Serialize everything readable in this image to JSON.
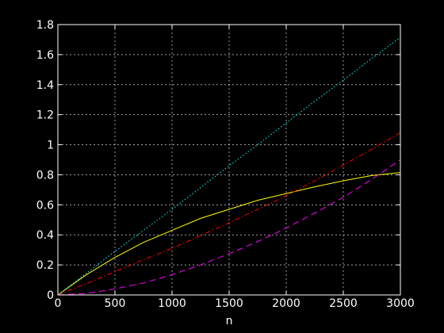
{
  "chart_data": {
    "type": "line",
    "title": "",
    "xlabel": "n",
    "ylabel": "",
    "xlim": [
      0,
      3000
    ],
    "ylim": [
      0,
      1.8
    ],
    "grid": true,
    "background": "#000000",
    "axis_color": "#ffffff",
    "grid_color": "#ffffff",
    "xticks": [
      0,
      500,
      1000,
      1500,
      2000,
      2500,
      3000
    ],
    "xtick_labels": [
      "0",
      "500",
      "1000",
      "1500",
      "2000",
      "2500",
      "3000"
    ],
    "yticks": [
      0,
      0.2,
      0.4,
      0.6,
      0.8,
      1,
      1.2,
      1.4,
      1.6,
      1.8
    ],
    "ytick_labels": [
      "0",
      "0.2",
      "0.4",
      "0.6",
      "0.8",
      "1",
      "1.2",
      "1.4",
      "1.6",
      "1.8"
    ],
    "x": [
      0,
      250,
      500,
      750,
      1000,
      1250,
      1500,
      1750,
      2000,
      2250,
      2500,
      2750,
      3000
    ],
    "series": [
      {
        "color": "#ffff00",
        "dash": "solid",
        "values": [
          0,
          0.135,
          0.25,
          0.35,
          0.43,
          0.51,
          0.57,
          0.63,
          0.675,
          0.72,
          0.76,
          0.795,
          0.815
        ]
      },
      {
        "color": "#00ffff",
        "dash": "dotted",
        "values": [
          0,
          0.145,
          0.29,
          0.43,
          0.57,
          0.715,
          0.86,
          1.0,
          1.145,
          1.29,
          1.43,
          1.575,
          1.715
        ]
      },
      {
        "color": "#ff0000",
        "dash": "dashdot",
        "values": [
          0,
          0.075,
          0.155,
          0.235,
          0.31,
          0.395,
          0.48,
          0.57,
          0.66,
          0.76,
          0.865,
          0.97,
          1.08
        ]
      },
      {
        "color": "#ff00ff",
        "dash": "dashed",
        "values": [
          0,
          0.01,
          0.04,
          0.08,
          0.135,
          0.2,
          0.275,
          0.355,
          0.445,
          0.545,
          0.65,
          0.77,
          0.9
        ]
      }
    ]
  }
}
